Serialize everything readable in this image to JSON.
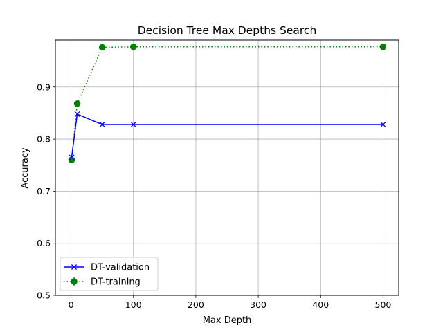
{
  "chart_data": {
    "type": "line",
    "title": "Decision Tree Max Depths Search",
    "xlabel": "Max Depth",
    "ylabel": "Accuracy",
    "xlim": [
      -25,
      525
    ],
    "ylim": [
      0.5,
      0.99
    ],
    "xticks": [
      0,
      100,
      200,
      300,
      400,
      500
    ],
    "yticks": [
      0.5,
      0.6,
      0.7,
      0.8,
      0.9
    ],
    "ytick_labels": [
      "0.5",
      "0.6",
      "0.7",
      "0.8",
      "0.9"
    ],
    "grid": true,
    "legend_position": "lower-left",
    "series": [
      {
        "name": "DT-validation",
        "color": "#0000ff",
        "linestyle": "solid",
        "marker": "x",
        "x": [
          1,
          10,
          50,
          100,
          500
        ],
        "y": [
          0.765,
          0.848,
          0.828,
          0.828,
          0.828
        ]
      },
      {
        "name": "DT-training",
        "color": "#008000",
        "linestyle": "dotted",
        "marker": "o",
        "errorbars": true,
        "x": [
          1,
          10,
          50,
          100,
          500
        ],
        "y": [
          0.76,
          0.868,
          0.976,
          0.977,
          0.977
        ]
      }
    ]
  }
}
